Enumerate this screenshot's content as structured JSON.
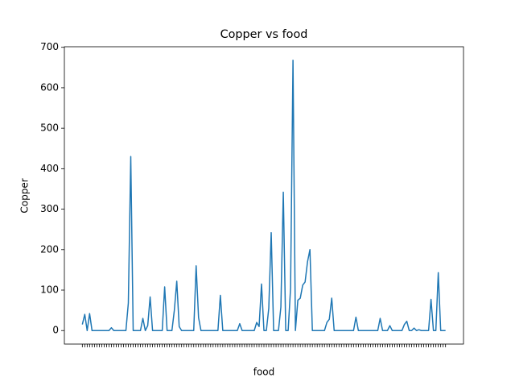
{
  "chart_data": {
    "type": "line",
    "title": "Copper vs food",
    "x_label": "food",
    "y_label": "Copper",
    "categories": [
      null,
      null,
      null,
      null,
      null,
      null,
      null,
      null,
      null,
      null,
      null,
      null,
      null,
      null,
      null,
      null,
      null,
      null,
      null,
      null,
      null,
      null,
      null,
      null,
      null,
      null,
      null,
      null,
      null,
      null,
      null,
      null,
      null,
      null,
      null,
      null,
      null,
      null,
      null,
      null,
      null,
      null,
      null,
      null,
      null,
      null,
      null,
      null,
      null,
      null,
      null,
      null,
      null,
      null,
      null,
      null,
      null,
      null,
      null,
      null,
      null,
      null,
      null,
      null,
      null,
      null,
      null,
      null,
      null,
      null,
      null,
      null,
      null,
      null,
      null,
      null,
      null,
      null,
      null,
      null,
      null,
      null,
      null,
      null,
      null,
      null,
      null,
      null,
      null,
      null,
      null,
      null,
      null,
      null,
      null,
      null,
      null,
      null,
      null,
      null,
      null,
      null,
      null,
      null,
      null,
      null,
      null,
      null,
      null,
      null,
      null,
      null,
      null,
      null,
      null,
      null,
      null,
      null,
      null,
      null,
      null,
      null,
      null,
      null,
      null,
      null,
      null,
      null,
      null,
      null,
      null,
      null,
      null,
      null,
      null,
      null,
      null,
      null,
      null,
      null,
      null,
      null,
      null,
      null,
      null,
      null,
      null,
      null,
      null,
      null,
      null
    ],
    "values": [
      15,
      40,
      0,
      42,
      0,
      0,
      0,
      0,
      0,
      0,
      0,
      0,
      7,
      0,
      0,
      0,
      0,
      0,
      0,
      68,
      430,
      0,
      0,
      0,
      0,
      30,
      0,
      12,
      83,
      0,
      0,
      0,
      0,
      0,
      108,
      0,
      0,
      0,
      50,
      122,
      10,
      0,
      0,
      0,
      0,
      0,
      0,
      160,
      32,
      0,
      0,
      0,
      0,
      0,
      0,
      0,
      0,
      87,
      0,
      0,
      0,
      0,
      0,
      0,
      0,
      17,
      0,
      0,
      0,
      0,
      0,
      0,
      20,
      10,
      115,
      0,
      0,
      55,
      242,
      0,
      0,
      0,
      58,
      342,
      0,
      0,
      105,
      668,
      0,
      75,
      80,
      112,
      120,
      170,
      200,
      0,
      0,
      0,
      0,
      0,
      0,
      20,
      28,
      80,
      0,
      0,
      0,
      0,
      0,
      0,
      0,
      0,
      0,
      33,
      0,
      0,
      0,
      0,
      0,
      0,
      0,
      0,
      0,
      30,
      0,
      0,
      0,
      12,
      0,
      0,
      0,
      0,
      0,
      15,
      23,
      0,
      0,
      6,
      0,
      2,
      0,
      0,
      0,
      0,
      77,
      0,
      0,
      143,
      0,
      0,
      0
    ],
    "color": "#1f77b4",
    "ylim": [
      -33.4,
      701.4
    ],
    "yticks": [
      0,
      100,
      200,
      300,
      400,
      500,
      600,
      700
    ],
    "grid": false
  }
}
